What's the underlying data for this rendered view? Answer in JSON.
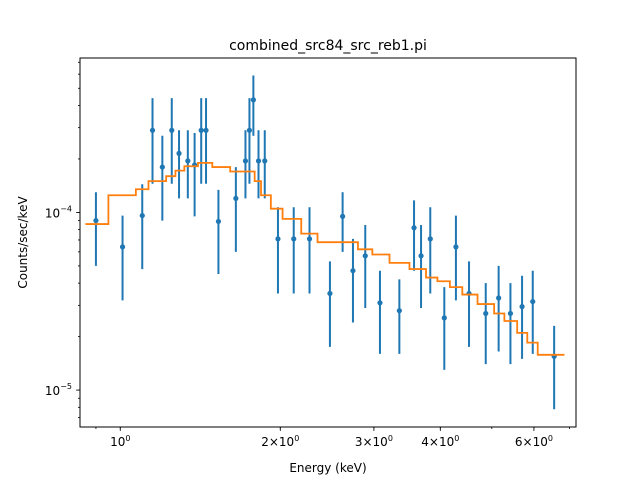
{
  "colors": {
    "data": "#1f77b4",
    "model": "#ff7f0e",
    "axes": "#000000"
  },
  "chart_data": {
    "type": "scatter",
    "title": "combined_src84_src_reb1.pi",
    "xlabel": "Energy (keV)",
    "ylabel": "Counts/sec/keV",
    "xscale": "log",
    "yscale": "log",
    "xlim": [
      0.84,
      7.2
    ],
    "ylim": [
      6.2e-06,
      0.00074
    ],
    "grid": false,
    "xticks": [
      {
        "value": 1,
        "base": "10",
        "exp": "0"
      },
      {
        "value": 2,
        "base": "2×10",
        "exp": "0"
      },
      {
        "value": 3,
        "base": "3×10",
        "exp": "0"
      },
      {
        "value": 4,
        "base": "4×10",
        "exp": "0"
      },
      {
        "value": 6,
        "base": "6×10",
        "exp": "0"
      }
    ],
    "yticks": [
      {
        "value": 1e-05,
        "base": "10",
        "exp": "−5"
      },
      {
        "value": 0.0001,
        "base": "10",
        "exp": "−4"
      }
    ],
    "series": [
      {
        "kind": "errorbar",
        "points": [
          {
            "x": 0.9,
            "y": 9e-05,
            "lo": 5e-05,
            "hi": 0.00013
          },
          {
            "x": 1.01,
            "y": 6.4e-05,
            "lo": 3.2e-05,
            "hi": 9.6e-05
          },
          {
            "x": 1.1,
            "y": 9.6e-05,
            "lo": 4.8e-05,
            "hi": 0.000144
          },
          {
            "x": 1.15,
            "y": 0.00029,
            "lo": 0.000145,
            "hi": 0.00044
          },
          {
            "x": 1.2,
            "y": 0.00018,
            "lo": 9e-05,
            "hi": 0.00027
          },
          {
            "x": 1.25,
            "y": 0.00029,
            "lo": 0.000145,
            "hi": 0.00044
          },
          {
            "x": 1.29,
            "y": 0.000215,
            "lo": 0.00012,
            "hi": 0.00029
          },
          {
            "x": 1.34,
            "y": 0.000195,
            "lo": 0.00012,
            "hi": 0.00029
          },
          {
            "x": 1.38,
            "y": 0.000185,
            "lo": 9.5e-05,
            "hi": 0.00028
          },
          {
            "x": 1.42,
            "y": 0.00029,
            "lo": 0.000145,
            "hi": 0.00044
          },
          {
            "x": 1.45,
            "y": 0.00029,
            "lo": 0.000145,
            "hi": 0.00044
          },
          {
            "x": 1.53,
            "y": 8.9e-05,
            "lo": 4.5e-05,
            "hi": 0.000134
          },
          {
            "x": 1.65,
            "y": 0.00012,
            "lo": 6e-05,
            "hi": 0.00018
          },
          {
            "x": 1.72,
            "y": 0.000195,
            "lo": 0.00012,
            "hi": 0.00029
          },
          {
            "x": 1.75,
            "y": 0.00029,
            "lo": 0.000145,
            "hi": 0.00044
          },
          {
            "x": 1.78,
            "y": 0.00043,
            "lo": 0.00027,
            "hi": 0.00059
          },
          {
            "x": 1.82,
            "y": 0.000195,
            "lo": 0.00012,
            "hi": 0.00029
          },
          {
            "x": 1.87,
            "y": 0.000195,
            "lo": 0.00012,
            "hi": 0.00029
          },
          {
            "x": 1.98,
            "y": 7.1e-05,
            "lo": 3.5e-05,
            "hi": 0.000107
          },
          {
            "x": 2.12,
            "y": 7.1e-05,
            "lo": 3.5e-05,
            "hi": 0.000107
          },
          {
            "x": 2.27,
            "y": 7.1e-05,
            "lo": 3.5e-05,
            "hi": 0.000107
          },
          {
            "x": 2.48,
            "y": 3.5e-05,
            "lo": 1.75e-05,
            "hi": 5.3e-05
          },
          {
            "x": 2.62,
            "y": 9.5e-05,
            "lo": 6e-05,
            "hi": 0.00013
          },
          {
            "x": 2.74,
            "y": 4.7e-05,
            "lo": 2.4e-05,
            "hi": 7.1e-05
          },
          {
            "x": 2.89,
            "y": 5.7e-05,
            "lo": 2.9e-05,
            "hi": 8.5e-05
          },
          {
            "x": 3.08,
            "y": 3.1e-05,
            "lo": 1.6e-05,
            "hi": 4.7e-05
          },
          {
            "x": 3.35,
            "y": 2.8e-05,
            "lo": 1.6e-05,
            "hi": 4.2e-05
          },
          {
            "x": 3.57,
            "y": 8.2e-05,
            "lo": 4.7e-05,
            "hi": 0.000117
          },
          {
            "x": 3.68,
            "y": 5.7e-05,
            "lo": 2.9e-05,
            "hi": 8.5e-05
          },
          {
            "x": 3.83,
            "y": 7.1e-05,
            "lo": 3.5e-05,
            "hi": 0.000107
          },
          {
            "x": 4.07,
            "y": 2.55e-05,
            "lo": 1.3e-05,
            "hi": 3.8e-05
          },
          {
            "x": 4.28,
            "y": 6.4e-05,
            "lo": 3.2e-05,
            "hi": 9.6e-05
          },
          {
            "x": 4.53,
            "y": 3.5e-05,
            "lo": 1.75e-05,
            "hi": 5.3e-05
          },
          {
            "x": 4.87,
            "y": 2.7e-05,
            "lo": 1.4e-05,
            "hi": 4e-05
          },
          {
            "x": 5.15,
            "y": 3.3e-05,
            "lo": 1.65e-05,
            "hi": 5e-05
          },
          {
            "x": 5.42,
            "y": 2.7e-05,
            "lo": 1.4e-05,
            "hi": 4e-05
          },
          {
            "x": 5.7,
            "y": 2.95e-05,
            "lo": 1.5e-05,
            "hi": 4.4e-05
          },
          {
            "x": 5.97,
            "y": 3.15e-05,
            "lo": 1.6e-05,
            "hi": 4.7e-05
          },
          {
            "x": 6.55,
            "y": 1.55e-05,
            "lo": 7.8e-06,
            "hi": 2.3e-05
          }
        ]
      },
      {
        "kind": "step",
        "points": [
          {
            "x": 0.86,
            "y": 8.6e-05
          },
          {
            "x": 0.95,
            "y": 0.000125
          },
          {
            "x": 1.07,
            "y": 0.000135
          },
          {
            "x": 1.13,
            "y": 0.00015
          },
          {
            "x": 1.22,
            "y": 0.00016
          },
          {
            "x": 1.27,
            "y": 0.000172
          },
          {
            "x": 1.32,
            "y": 0.000182
          },
          {
            "x": 1.4,
            "y": 0.00019
          },
          {
            "x": 1.49,
            "y": 0.00018
          },
          {
            "x": 1.61,
            "y": 0.00017
          },
          {
            "x": 1.79,
            "y": 0.00015
          },
          {
            "x": 1.84,
            "y": 0.000125
          },
          {
            "x": 1.92,
            "y": 0.000105
          },
          {
            "x": 2.02,
            "y": 9.2e-05
          },
          {
            "x": 2.19,
            "y": 7.6e-05
          },
          {
            "x": 2.35,
            "y": 6.8e-05
          },
          {
            "x": 2.8,
            "y": 6.2e-05
          },
          {
            "x": 2.98,
            "y": 5.8e-05
          },
          {
            "x": 3.21,
            "y": 5.2e-05
          },
          {
            "x": 3.5,
            "y": 4.8e-05
          },
          {
            "x": 3.76,
            "y": 4.3e-05
          },
          {
            "x": 3.95,
            "y": 4.1e-05
          },
          {
            "x": 4.17,
            "y": 3.8e-05
          },
          {
            "x": 4.4,
            "y": 3.45e-05
          },
          {
            "x": 4.7,
            "y": 3.05e-05
          },
          {
            "x": 5.05,
            "y": 2.7e-05
          },
          {
            "x": 5.28,
            "y": 2.45e-05
          },
          {
            "x": 5.58,
            "y": 2.1e-05
          },
          {
            "x": 5.83,
            "y": 1.85e-05
          },
          {
            "x": 6.1,
            "y": 1.58e-05
          },
          {
            "x": 6.85,
            "y": 1.58e-05
          }
        ]
      }
    ]
  }
}
